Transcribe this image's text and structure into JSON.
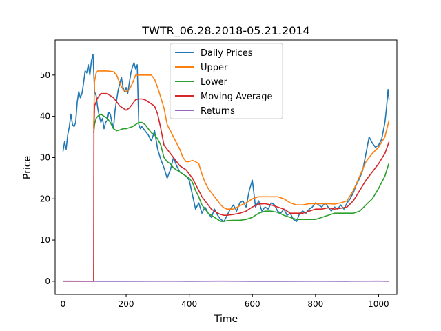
{
  "chart_data": {
    "type": "line",
    "title": "TWTR_06.28.2018-05.21.2014",
    "xlabel": "Time",
    "ylabel": "Price",
    "xlim": [
      -25,
      1058
    ],
    "ylim": [
      -3.2,
      58.5
    ],
    "xticks": [
      0,
      200,
      400,
      600,
      800,
      1000
    ],
    "yticks": [
      0,
      10,
      20,
      30,
      40,
      50
    ],
    "grid": false,
    "legend_position": "top-center",
    "series": [
      {
        "name": "Daily Prices",
        "color": "#1f77b4",
        "x": [
          0,
          5,
          10,
          15,
          20,
          25,
          30,
          35,
          40,
          45,
          50,
          55,
          60,
          65,
          70,
          75,
          80,
          85,
          90,
          95,
          100,
          105,
          110,
          115,
          120,
          125,
          130,
          135,
          140,
          145,
          150,
          155,
          160,
          165,
          170,
          175,
          180,
          185,
          190,
          195,
          200,
          205,
          210,
          215,
          220,
          225,
          230,
          235,
          240,
          245,
          250,
          260,
          270,
          280,
          290,
          300,
          310,
          320,
          330,
          340,
          350,
          360,
          370,
          380,
          390,
          400,
          410,
          420,
          430,
          440,
          450,
          460,
          470,
          480,
          490,
          500,
          510,
          520,
          530,
          540,
          550,
          560,
          570,
          580,
          590,
          600,
          610,
          620,
          630,
          640,
          650,
          660,
          670,
          680,
          690,
          700,
          710,
          720,
          730,
          740,
          750,
          760,
          770,
          780,
          790,
          800,
          810,
          820,
          830,
          840,
          850,
          860,
          870,
          880,
          890,
          900,
          910,
          920,
          930,
          940,
          950,
          960,
          970,
          980,
          990,
          1000,
          1010,
          1020,
          1025,
          1030,
          1033
        ],
        "values": [
          31.5,
          33.8,
          32.0,
          35.5,
          37.5,
          40.5,
          38.0,
          37.5,
          38.5,
          43.5,
          46.0,
          44.5,
          45.5,
          48.0,
          51.0,
          50.5,
          52.5,
          50.0,
          53.5,
          55.0,
          46.0,
          45.0,
          42.0,
          40.0,
          38.5,
          39.5,
          37.0,
          38.5,
          39.0,
          41.0,
          40.5,
          38.5,
          37.0,
          41.5,
          44.0,
          46.5,
          48.0,
          49.5,
          47.0,
          46.0,
          47.0,
          45.5,
          48.0,
          50.5,
          52.0,
          53.0,
          51.5,
          52.5,
          38.0,
          37.0,
          37.5,
          36.5,
          35.5,
          34.0,
          36.5,
          32.0,
          29.5,
          27.5,
          25.0,
          27.0,
          30.0,
          28.0,
          26.5,
          26.0,
          25.5,
          24.5,
          21.0,
          17.5,
          19.0,
          16.5,
          18.0,
          16.5,
          15.5,
          17.5,
          16.0,
          15.0,
          14.5,
          16.0,
          17.5,
          18.5,
          17.0,
          19.0,
          19.5,
          18.0,
          22.0,
          24.5,
          18.0,
          19.5,
          17.0,
          18.0,
          17.5,
          19.0,
          18.5,
          17.0,
          16.5,
          17.5,
          16.0,
          16.5,
          15.0,
          14.5,
          16.5,
          17.0,
          16.5,
          17.5,
          18.0,
          19.0,
          18.5,
          18.0,
          19.0,
          18.0,
          17.0,
          18.0,
          17.5,
          18.5,
          17.5,
          19.0,
          20.0,
          21.5,
          23.5,
          25.0,
          27.0,
          31.0,
          35.0,
          33.5,
          32.5,
          33.0,
          34.5,
          38.5,
          42.0,
          46.5,
          44.0
        ]
      },
      {
        "name": "Upper",
        "color": "#ff7f0e",
        "x": [
          97,
          100,
          105,
          110,
          120,
          140,
          160,
          170,
          180,
          190,
          200,
          210,
          220,
          230,
          240,
          260,
          280,
          290,
          300,
          310,
          320,
          330,
          340,
          350,
          360,
          370,
          380,
          390,
          400,
          410,
          420,
          430,
          440,
          450,
          460,
          470,
          480,
          490,
          500,
          510,
          520,
          530,
          540,
          560,
          580,
          600,
          620,
          640,
          660,
          680,
          700,
          720,
          740,
          760,
          780,
          800,
          820,
          840,
          860,
          880,
          900,
          920,
          940,
          960,
          980,
          1000,
          1020,
          1033
        ],
        "values": [
          37.0,
          48.5,
          50.5,
          51.0,
          51.0,
          51.0,
          50.8,
          50.0,
          48.0,
          46.5,
          46.0,
          46.5,
          48.0,
          50.0,
          50.0,
          50.0,
          50.0,
          49.0,
          47.0,
          44.5,
          42.0,
          38.0,
          36.5,
          35.0,
          33.5,
          32.0,
          30.0,
          29.0,
          29.0,
          29.3,
          29.0,
          28.5,
          26.0,
          24.0,
          22.5,
          21.5,
          20.5,
          19.5,
          18.5,
          17.8,
          17.5,
          17.5,
          17.5,
          18.3,
          19.0,
          20.0,
          20.5,
          20.5,
          20.5,
          20.5,
          20.0,
          19.0,
          18.5,
          18.5,
          18.8,
          18.8,
          18.8,
          18.8,
          18.7,
          19.0,
          19.5,
          22.0,
          25.5,
          29.0,
          31.0,
          32.5,
          35.0,
          39.0
        ]
      },
      {
        "name": "Lower",
        "color": "#2ca02c",
        "x": [
          97,
          100,
          105,
          110,
          120,
          130,
          140,
          150,
          160,
          170,
          180,
          190,
          200,
          220,
          240,
          250,
          260,
          270,
          280,
          290,
          300,
          310,
          320,
          330,
          340,
          350,
          360,
          370,
          380,
          390,
          400,
          410,
          420,
          430,
          440,
          450,
          460,
          470,
          480,
          490,
          500,
          510,
          520,
          540,
          560,
          580,
          600,
          620,
          640,
          660,
          680,
          700,
          720,
          740,
          760,
          780,
          800,
          820,
          840,
          860,
          880,
          900,
          920,
          940,
          960,
          980,
          1000,
          1020,
          1033
        ],
        "values": [
          36.0,
          38.0,
          39.5,
          40.0,
          40.5,
          40.0,
          39.5,
          38.5,
          37.0,
          36.5,
          36.7,
          37.0,
          37.0,
          37.5,
          38.5,
          38.5,
          38.0,
          37.0,
          36.0,
          35.5,
          34.5,
          33.0,
          30.0,
          29.0,
          28.5,
          27.5,
          27.0,
          26.5,
          26.0,
          25.5,
          25.0,
          24.0,
          22.0,
          20.5,
          18.5,
          17.5,
          16.5,
          16.0,
          15.5,
          15.0,
          14.5,
          14.5,
          14.7,
          14.8,
          14.8,
          15.0,
          15.5,
          16.5,
          17.0,
          17.0,
          16.7,
          16.0,
          15.5,
          15.0,
          15.0,
          15.0,
          15.0,
          15.5,
          16.0,
          16.5,
          16.5,
          16.5,
          16.5,
          17.0,
          18.5,
          20.0,
          22.5,
          25.5,
          28.7
        ]
      },
      {
        "name": "Moving Average",
        "color": "#d62728",
        "x": [
          0,
          94,
          96,
          97,
          98,
          100,
          105,
          110,
          120,
          140,
          160,
          170,
          180,
          190,
          200,
          210,
          220,
          230,
          240,
          250,
          260,
          270,
          280,
          290,
          300,
          310,
          320,
          330,
          340,
          350,
          360,
          370,
          380,
          390,
          400,
          410,
          420,
          430,
          440,
          450,
          460,
          470,
          480,
          490,
          500,
          510,
          520,
          540,
          560,
          580,
          600,
          620,
          640,
          660,
          680,
          700,
          720,
          740,
          760,
          780,
          800,
          820,
          840,
          860,
          880,
          900,
          920,
          940,
          960,
          980,
          1000,
          1020,
          1033
        ],
        "values": [
          0,
          0,
          0,
          0,
          36.5,
          42.5,
          43.5,
          44.5,
          45.5,
          45.5,
          44.5,
          43.5,
          42.5,
          42.0,
          41.5,
          42.0,
          43.0,
          44.0,
          44.2,
          44.2,
          44.0,
          43.5,
          43.0,
          42.5,
          40.5,
          37.0,
          33.0,
          32.0,
          31.0,
          30.0,
          29.0,
          28.0,
          27.5,
          27.0,
          26.0,
          25.0,
          23.5,
          22.0,
          20.5,
          19.5,
          18.5,
          17.5,
          17.0,
          16.5,
          16.2,
          16.0,
          16.0,
          16.2,
          16.5,
          17.0,
          18.0,
          18.7,
          18.8,
          18.5,
          18.0,
          17.5,
          16.5,
          16.5,
          16.5,
          17.0,
          17.5,
          17.5,
          17.8,
          17.5,
          17.7,
          18.0,
          19.5,
          22.0,
          24.5,
          26.5,
          28.5,
          31.0,
          33.8
        ]
      },
      {
        "name": "Returns",
        "color": "#9467bd",
        "x": [
          0,
          100,
          200,
          300,
          400,
          500,
          600,
          700,
          800,
          900,
          1000,
          1033
        ],
        "values": [
          0.02,
          0.0,
          -0.02,
          0.01,
          0.0,
          0.02,
          -0.01,
          0.0,
          0.01,
          0.0,
          0.02,
          0.0
        ]
      }
    ]
  }
}
